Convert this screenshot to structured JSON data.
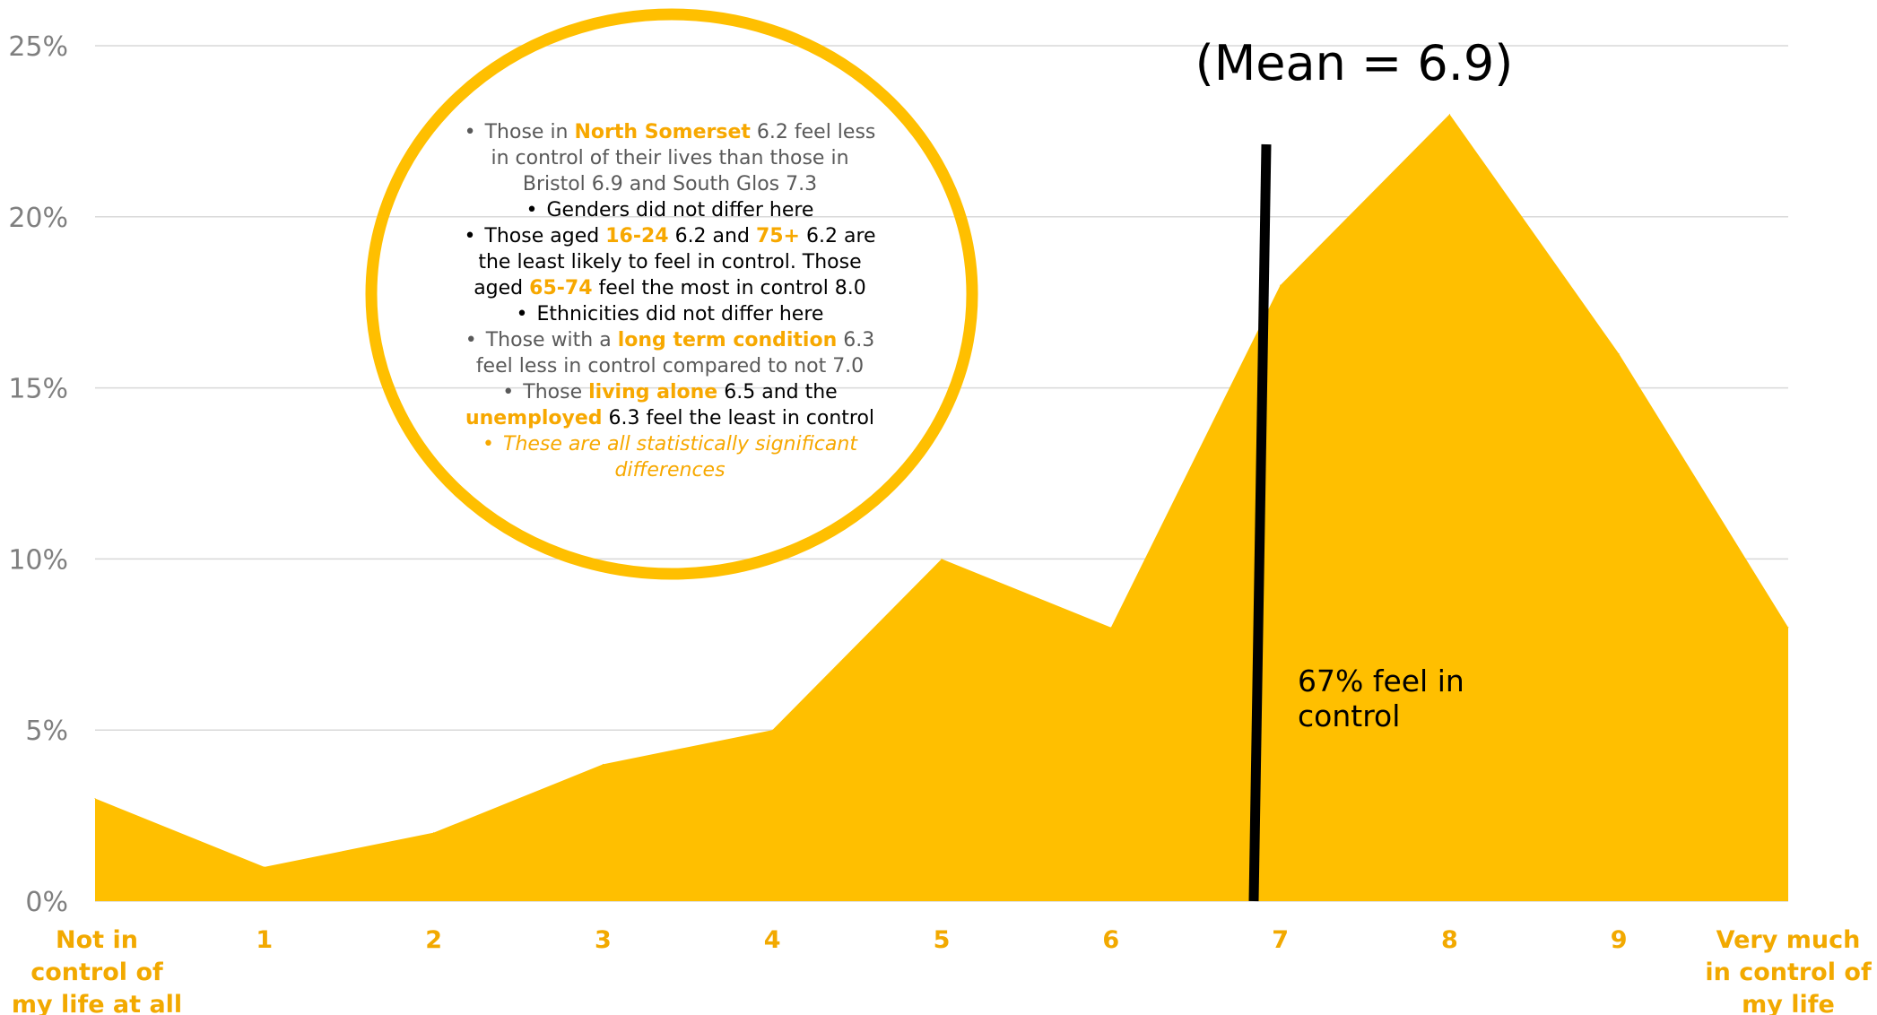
{
  "chart_data": {
    "type": "area",
    "categories": [
      "Not in control of my life at all",
      "1",
      "2",
      "3",
      "4",
      "5",
      "6",
      "7",
      "8",
      "9",
      "Very much in control of my life"
    ],
    "category_lines": [
      [
        "Not in",
        "control of",
        "my life at all"
      ],
      [
        "1"
      ],
      [
        "2"
      ],
      [
        "3"
      ],
      [
        "4"
      ],
      [
        "5"
      ],
      [
        "6"
      ],
      [
        "7"
      ],
      [
        "8"
      ],
      [
        "9"
      ],
      [
        "Very much",
        "in control of",
        "my life"
      ]
    ],
    "values": [
      3,
      1,
      2,
      4,
      5,
      10,
      8,
      18,
      23,
      16,
      8
    ],
    "ylim": [
      0,
      25
    ],
    "yticks": [
      "0%",
      "5%",
      "10%",
      "15%",
      "20%",
      "25%"
    ],
    "grid": true,
    "colors": {
      "area": "#ffbf00",
      "tick_x": "#f2a900",
      "tick_y": "#7f7f7f",
      "grid": "#d9d9d9",
      "mean_line": "#000000",
      "circle": "#ffbf00"
    },
    "mean": {
      "label": "(Mean = 6.9)",
      "value": 6.9
    },
    "annotation": [
      "67% feel in",
      "control"
    ]
  },
  "notes": [
    {
      "bullet": "•",
      "segments": [
        {
          "text": "Those in ",
          "style": "plain"
        },
        {
          "text": "North Somerset",
          "style": "hl"
        },
        {
          "text": " 6.2 feel less in control of their lives than those in Bristol 6.9  and South Glos 7.3",
          "style": "plain"
        }
      ]
    },
    {
      "bullet": "•",
      "segments": [
        {
          "text": "Genders did not differ here",
          "style": "dark"
        }
      ]
    },
    {
      "bullet": "•",
      "segments": [
        {
          "text": "Those aged ",
          "style": "dark"
        },
        {
          "text": "16-24",
          "style": "hl"
        },
        {
          "text": " 6.2 and ",
          "style": "dark"
        },
        {
          "text": "75+",
          "style": "hl"
        },
        {
          "text": " 6.2 are the least likely to feel in control. Those aged ",
          "style": "dark"
        },
        {
          "text": "65-74",
          "style": "hl"
        },
        {
          "text": " feel the most in control 8.0",
          "style": "dark"
        }
      ]
    },
    {
      "bullet": "•",
      "segments": [
        {
          "text": "Ethnicities did not differ here",
          "style": "dark"
        }
      ]
    },
    {
      "bullet": "•",
      "segments": [
        {
          "text": "Those with a ",
          "style": "plain"
        },
        {
          "text": "long term condition",
          "style": "hl"
        },
        {
          "text": " 6.3 feel less in control compared to not 7.0",
          "style": "plain"
        }
      ]
    },
    {
      "bullet": "•",
      "segments": [
        {
          "text": "Those ",
          "style": "plain"
        },
        {
          "text": "living alone",
          "style": "hl"
        },
        {
          "text": " 6.5 and the ",
          "style": "dark"
        },
        {
          "text": "unemployed",
          "style": "hl"
        },
        {
          "text": " 6.3 feel the least in control",
          "style": "dark"
        }
      ]
    },
    {
      "bullet": "•",
      "bullet_style": "italic",
      "segments": [
        {
          "text": "These are all statistically significant differences",
          "style": "italic"
        }
      ]
    }
  ]
}
